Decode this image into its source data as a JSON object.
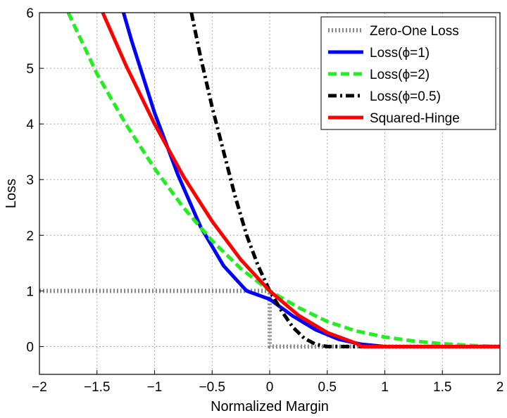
{
  "chart_data": {
    "type": "line",
    "title": "",
    "xlabel": "Normalized Margin",
    "ylabel": "Loss",
    "xlim": [
      -2,
      2
    ],
    "ylim": [
      -0.5,
      6
    ],
    "grid": true,
    "legend_position": "top-right",
    "x_ticks": [
      -2,
      -1.5,
      -1,
      -0.5,
      0,
      0.5,
      1,
      1.5,
      2
    ],
    "x_tick_labels": [
      "−2",
      "−1.5",
      "−1",
      "−0.5",
      "0",
      "0.5",
      "1",
      "1.5",
      "2"
    ],
    "y_ticks": [
      0,
      1,
      2,
      3,
      4,
      5,
      6
    ],
    "y_tick_labels": [
      "0",
      "1",
      "2",
      "3",
      "4",
      "5",
      "6"
    ],
    "series": [
      {
        "name": "Zero-One Loss",
        "color": "#888888",
        "style": "dotted",
        "x": [
          -2,
          -1.5,
          -1,
          -0.5,
          -0.02,
          0,
          0,
          0.5,
          1,
          1.5,
          2
        ],
        "y": [
          1,
          1,
          1,
          1,
          1,
          1,
          0,
          0,
          0,
          0,
          0
        ]
      },
      {
        "name": "Loss(ϕ=1)",
        "color": "#0000ff",
        "style": "solid",
        "x": [
          -1.27,
          -1.2,
          -1.0,
          -0.8,
          -0.6,
          -0.4,
          -0.2,
          0,
          0.2,
          0.4,
          0.6,
          0.8,
          1.0,
          1.5,
          2.0
        ],
        "y": [
          6.0,
          5.5,
          4.2,
          3.1,
          2.15,
          1.45,
          1.0,
          0.85,
          0.55,
          0.3,
          0.13,
          0.04,
          0.0,
          0.0,
          0.0
        ]
      },
      {
        "name": "Loss(ϕ=2)",
        "color": "#22ee22",
        "style": "dashed",
        "x": [
          -1.75,
          -1.5,
          -1.25,
          -1.0,
          -0.75,
          -0.5,
          -0.25,
          0,
          0.25,
          0.5,
          0.75,
          1.0,
          1.25,
          1.5,
          1.75,
          2.0
        ],
        "y": [
          6.0,
          4.9,
          4.0,
          3.2,
          2.5,
          1.9,
          1.4,
          1.0,
          0.7,
          0.45,
          0.28,
          0.17,
          0.1,
          0.05,
          0.02,
          0.0
        ]
      },
      {
        "name": "Loss(ϕ=0.5)",
        "color": "#000000",
        "style": "dashdot",
        "x": [
          -0.68,
          -0.6,
          -0.5,
          -0.4,
          -0.3,
          -0.2,
          -0.1,
          0,
          0.1,
          0.2,
          0.3,
          0.4,
          0.5,
          0.7,
          1.0
        ],
        "y": [
          6.0,
          5.2,
          4.3,
          3.5,
          2.7,
          2.0,
          1.45,
          1.0,
          0.65,
          0.35,
          0.15,
          0.04,
          0.0,
          0.0,
          0.0
        ]
      },
      {
        "name": "Squared-Hinge",
        "color": "#ff0000",
        "style": "solid",
        "x": [
          -1.45,
          -1.25,
          -1.0,
          -0.75,
          -0.5,
          -0.25,
          0,
          0.25,
          0.5,
          0.75,
          0.8,
          1.0,
          1.5,
          2.0
        ],
        "y": [
          6.0,
          5.06,
          4.0,
          3.06,
          2.25,
          1.56,
          1.0,
          0.56,
          0.25,
          0.06,
          0.0,
          0.0,
          0.0,
          0.0
        ]
      }
    ]
  }
}
